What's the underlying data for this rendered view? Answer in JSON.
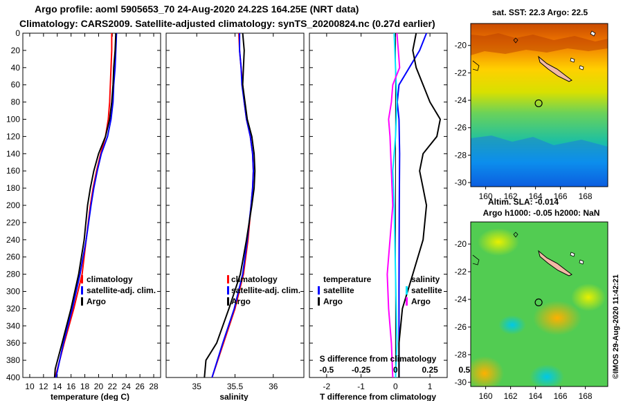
{
  "title_line1": "Argo profile: aoml 5905653_70 24-Aug-2020 24.22S 164.25E (NRT data)",
  "title_line2": "Climatology: CARS2009. Satellite-adjusted climatology: synTS_20200824.nc (0.27d earlier)",
  "credit": "©IMOS 29-Aug-2020 11:42:21",
  "colors": {
    "climatology": "#ff0000",
    "satellite": "#0000ff",
    "argo": "#000000",
    "t_sat": "#0000ff",
    "s_sat": "#00e5ff",
    "s_diff": "#ff00ff"
  },
  "chart_data": [
    {
      "type": "line",
      "name": "temperature-profile",
      "xlabel": "temperature (deg C)",
      "ylabel": "",
      "xlim": [
        9,
        29
      ],
      "ylim": [
        400,
        0
      ],
      "xticks": [
        "10",
        "12",
        "14",
        "16",
        "18",
        "20",
        "22",
        "24",
        "26",
        "28"
      ],
      "xtick_values": [
        10,
        12,
        14,
        16,
        18,
        20,
        22,
        24,
        26,
        28
      ],
      "yticks": [
        "0",
        "20",
        "40",
        "60",
        "80",
        "100",
        "120",
        "140",
        "160",
        "180",
        "200",
        "220",
        "240",
        "260",
        "280",
        "300",
        "320",
        "340",
        "360",
        "380",
        "400"
      ],
      "ytick_values": [
        0,
        20,
        40,
        60,
        80,
        100,
        120,
        140,
        160,
        180,
        200,
        220,
        240,
        260,
        280,
        300,
        320,
        340,
        360,
        380,
        400
      ],
      "legend": [
        "climatology",
        "satellite-adj. clim.",
        "Argo"
      ],
      "series": [
        {
          "name": "climatology",
          "color": "#ff0000",
          "depth": [
            0,
            20,
            40,
            60,
            80,
            100,
            120,
            140,
            160,
            180,
            200,
            240,
            280,
            320,
            360,
            400
          ],
          "values": [
            21.9,
            21.9,
            21.8,
            21.7,
            21.6,
            21.4,
            21.0,
            20.3,
            19.7,
            19.2,
            18.8,
            18.2,
            17.6,
            16.4,
            15.0,
            13.7
          ]
        },
        {
          "name": "satellite-adj. clim.",
          "color": "#0000ff",
          "depth": [
            0,
            20,
            40,
            60,
            80,
            100,
            120,
            140,
            160,
            180,
            200,
            240,
            280,
            320,
            360,
            400
          ],
          "values": [
            22.6,
            22.5,
            22.4,
            22.2,
            22.1,
            21.8,
            21.3,
            20.4,
            19.8,
            19.3,
            18.9,
            18.2,
            17.3,
            16.2,
            14.9,
            13.8
          ]
        },
        {
          "name": "Argo",
          "color": "#000000",
          "depth": [
            0,
            20,
            40,
            60,
            80,
            100,
            120,
            140,
            160,
            180,
            200,
            240,
            280,
            320,
            360,
            390,
            400
          ],
          "values": [
            22.5,
            22.4,
            22.2,
            22.1,
            21.9,
            21.6,
            21.0,
            20.0,
            19.3,
            18.8,
            18.4,
            17.9,
            17.1,
            16.0,
            14.7,
            13.7,
            13.6
          ]
        }
      ]
    },
    {
      "type": "line",
      "name": "salinity-profile",
      "xlabel": "salinity",
      "ylabel": "",
      "xlim": [
        34.6,
        36.4
      ],
      "ylim": [
        400,
        0
      ],
      "xticks": [
        "35",
        "35.5",
        "36"
      ],
      "xtick_values": [
        35,
        35.5,
        36
      ],
      "legend": [
        "climatology",
        "satellite-adj. clim.",
        "Argo"
      ],
      "series": [
        {
          "name": "climatology",
          "color": "#ff0000",
          "depth": [
            0,
            20,
            40,
            60,
            80,
            100,
            120,
            140,
            160,
            180,
            200,
            240,
            280,
            320,
            360,
            400
          ],
          "values": [
            35.55,
            35.56,
            35.58,
            35.6,
            35.62,
            35.65,
            35.7,
            35.73,
            35.74,
            35.73,
            35.71,
            35.67,
            35.61,
            35.5,
            35.35,
            35.2
          ]
        },
        {
          "name": "satellite-adj. clim.",
          "color": "#0000ff",
          "depth": [
            0,
            20,
            40,
            60,
            80,
            100,
            120,
            140,
            160,
            180,
            200,
            240,
            280,
            320,
            360,
            400
          ],
          "values": [
            35.56,
            35.56,
            35.58,
            35.59,
            35.62,
            35.65,
            35.7,
            35.73,
            35.74,
            35.73,
            35.71,
            35.66,
            35.6,
            35.49,
            35.34,
            35.2
          ]
        },
        {
          "name": "Argo",
          "color": "#000000",
          "depth": [
            0,
            20,
            40,
            60,
            80,
            100,
            120,
            140,
            160,
            180,
            200,
            240,
            280,
            320,
            360,
            380,
            400
          ],
          "values": [
            35.6,
            35.62,
            35.61,
            35.6,
            35.63,
            35.66,
            35.72,
            35.75,
            35.76,
            35.75,
            35.72,
            35.65,
            35.57,
            35.42,
            35.26,
            35.12,
            35.1
          ]
        }
      ]
    },
    {
      "type": "line",
      "name": "difference-profile",
      "xlabel": "T difference from climatology",
      "xlabel_top": "S difference from climatology",
      "xlim": [
        -2.5,
        1.5
      ],
      "ylim": [
        400,
        0
      ],
      "xticks": [
        "-2",
        "-1",
        "0",
        "1"
      ],
      "xtick_values": [
        -2,
        -1,
        0,
        1
      ],
      "xticks_top": [
        "-0.5",
        "-0.25",
        "0",
        "0.25",
        "0.5"
      ],
      "xtick_top_values": [
        -0.5,
        -0.25,
        0,
        0.25,
        0.5
      ],
      "legend_temperature_title": "temperature",
      "legend_salinity_title": "salinity",
      "legend_temperature": [
        "satellite",
        "Argo"
      ],
      "legend_salinity": [
        "satellite",
        "Argo"
      ],
      "series": [
        {
          "name": "T satellite",
          "color": "#0000ff",
          "depth": [
            0,
            20,
            40,
            60,
            80,
            100,
            140,
            200,
            300,
            400
          ],
          "values": [
            0.9,
            0.7,
            0.4,
            0.1,
            0.05,
            0.1,
            0.12,
            0.11,
            0.1,
            0.1
          ]
        },
        {
          "name": "T Argo",
          "color": "#000000",
          "depth": [
            0,
            20,
            40,
            60,
            80,
            100,
            120,
            140,
            160,
            180,
            200,
            240,
            280,
            320,
            360,
            400
          ],
          "values": [
            0.6,
            0.5,
            0.6,
            0.8,
            1.0,
            1.3,
            1.2,
            0.8,
            0.7,
            0.8,
            0.9,
            0.8,
            0.5,
            0.2,
            0.1,
            0.1
          ]
        },
        {
          "name": "S satellite",
          "color": "#00e5ff",
          "depth": [
            0,
            40,
            80,
            120,
            160,
            200,
            280,
            360,
            400
          ],
          "values": [
            -0.01,
            0,
            0.01,
            0.0,
            -0.02,
            -0.01,
            0.0,
            0.01,
            0.0
          ]
        },
        {
          "name": "S Argo",
          "color": "#ff00ff",
          "depth": [
            0,
            20,
            40,
            60,
            80,
            100,
            120,
            160,
            200,
            240,
            280,
            320,
            360,
            400
          ],
          "values": [
            0.01,
            0.02,
            0.03,
            -0.02,
            -0.03,
            -0.05,
            -0.04,
            -0.03,
            -0.02,
            -0.04,
            -0.06,
            -0.05,
            -0.03,
            -0.02
          ]
        }
      ]
    },
    {
      "type": "heatmap",
      "name": "sst-map",
      "title": "sat. SST: 22.3 Argo: 22.5",
      "xticks": [
        "160",
        "162",
        "164",
        "166",
        "168"
      ],
      "xtick_values": [
        160,
        162,
        164,
        166,
        168
      ],
      "yticks": [
        "-20",
        "-22",
        "-24",
        "-26",
        "-28",
        "-30"
      ],
      "ytick_values": [
        -20,
        -22,
        -24,
        -26,
        -28,
        -30
      ],
      "xlim": [
        158.8,
        169.8
      ],
      "ylim": [
        -30.3,
        -18.4
      ],
      "profile_marker": [
        164.25,
        -24.22
      ]
    },
    {
      "type": "heatmap",
      "name": "sla-map",
      "title": "Altim. SLA: -0.014",
      "subtitle": "Argo h1000: -0.05 h2000: NaN",
      "xticks": [
        "160",
        "162",
        "164",
        "166",
        "168"
      ],
      "xtick_values": [
        160,
        162,
        164,
        166,
        168
      ],
      "yticks": [
        "-20",
        "-22",
        "-24",
        "-26",
        "-28",
        "-30"
      ],
      "ytick_values": [
        -20,
        -22,
        -24,
        -26,
        -28,
        -30
      ],
      "xlim": [
        158.8,
        169.8
      ],
      "ylim": [
        -30.3,
        -18.4
      ],
      "profile_marker": [
        164.25,
        -24.22
      ]
    }
  ]
}
